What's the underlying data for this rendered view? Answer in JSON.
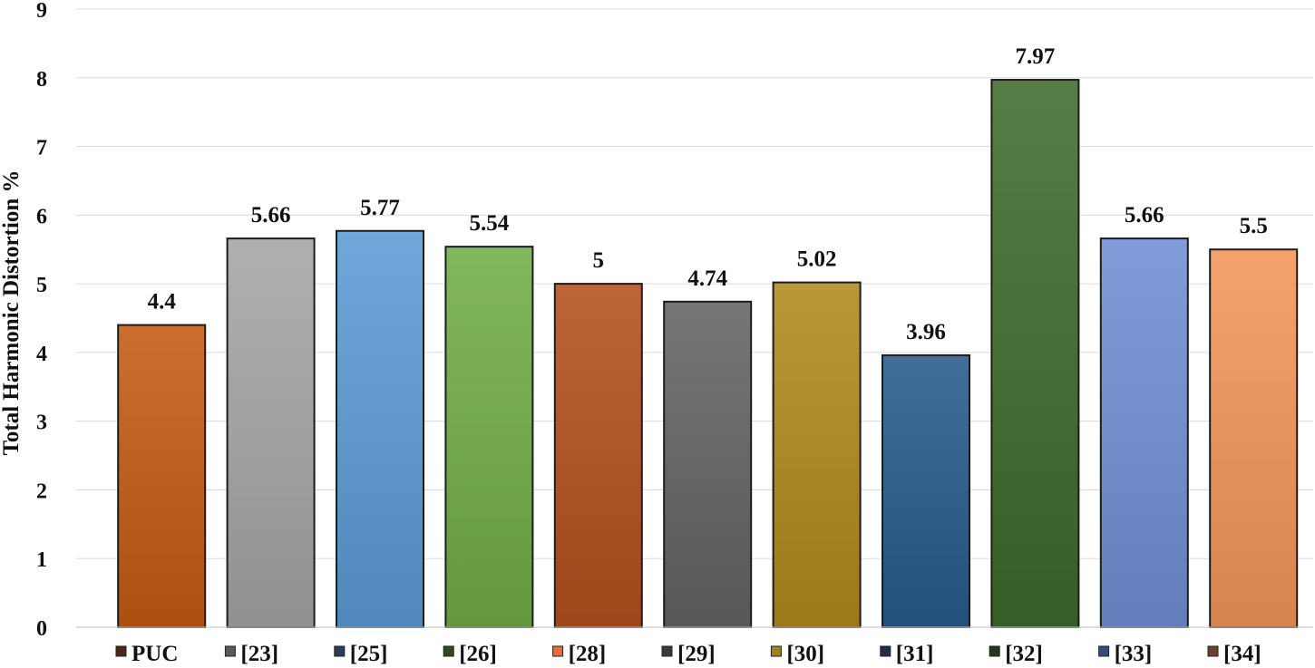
{
  "chart_data": {
    "type": "bar",
    "categories": [
      "PUC",
      "[23]",
      "[25]",
      "[26]",
      "[28]",
      "[29]",
      "[30]",
      "[31]",
      "[32]",
      "[33]",
      "[34]"
    ],
    "values": [
      4.4,
      5.66,
      5.77,
      5.54,
      5,
      4.74,
      5.02,
      3.96,
      7.97,
      5.66,
      5.5
    ],
    "data_labels": [
      "4.4",
      "5.66",
      "5.77",
      "5.54",
      "5",
      "4.74",
      "5.02",
      "3.96",
      "7.97",
      "5.66",
      "5.5"
    ],
    "colors": [
      "#c55a11",
      "#a5a5a5",
      "#5b9bd5",
      "#70ad47",
      "#b5501c",
      "#636363",
      "#b08a1e",
      "#285a8c",
      "#3f6b2c",
      "#6f90d4",
      "#f4955a"
    ],
    "legend_colors": [
      "#4a2a16",
      "#5a5a5a",
      "#2a3e55",
      "#2e4a22",
      "#e07040",
      "#3a3a3a",
      "#a08020",
      "#1e2e44",
      "#26381c",
      "#3a4a78",
      "#6e4030"
    ],
    "title": "",
    "xlabel": "",
    "ylabel": "Total Harmonic Distortion %",
    "ylim": [
      0,
      9
    ],
    "yticks": [
      "0",
      "1",
      "2",
      "3",
      "4",
      "5",
      "6",
      "7",
      "8",
      "9"
    ],
    "grid": true,
    "legend_position": "bottom"
  }
}
